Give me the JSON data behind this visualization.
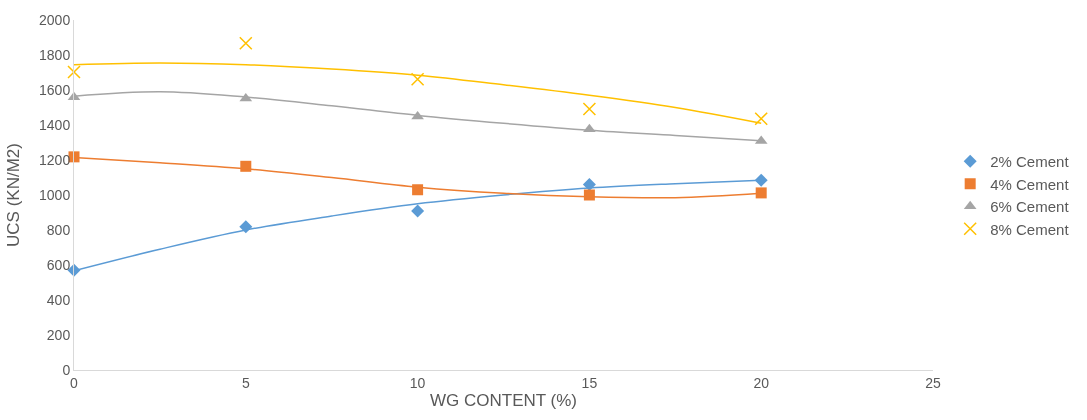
{
  "chart_data": {
    "type": "scatter",
    "xlabel": "WG CONTENT (%)",
    "ylabel": "UCS (KN/M2)",
    "x": [
      0,
      5,
      10,
      15,
      20
    ],
    "series": [
      {
        "name": "2% Cement",
        "color": "#5b9bd5",
        "marker": "diamond",
        "values": [
          570,
          818,
          909,
          1060,
          1085
        ]
      },
      {
        "name": "4% Cement",
        "color": "#ed7d31",
        "marker": "square",
        "values": [
          1218,
          1164,
          1030,
          1000,
          1012
        ]
      },
      {
        "name": "6% Cement",
        "color": "#a5a5a5",
        "marker": "triangle",
        "values": [
          1558,
          1552,
          1448,
          1376,
          1309
        ]
      },
      {
        "name": "8% Cement",
        "color": "#ffc000",
        "marker": "cross",
        "values": [
          1703,
          1867,
          1661,
          1491,
          1436
        ]
      },
      {
        "type": "line",
        "color": "#5b9bd5",
        "x": [
          0,
          2.5,
          5,
          7.5,
          10,
          12.5,
          15,
          17.5,
          20
        ],
        "values": [
          567,
          690,
          800,
          880,
          950,
          1000,
          1040,
          1065,
          1085
        ]
      },
      {
        "type": "line",
        "color": "#ed7d31",
        "x": [
          0,
          2.5,
          5,
          7.5,
          10,
          12.5,
          15,
          17.5,
          20
        ],
        "values": [
          1215,
          1185,
          1150,
          1100,
          1045,
          1010,
          990,
          985,
          1010
        ]
      },
      {
        "type": "line",
        "color": "#a5a5a5",
        "x": [
          0,
          2.5,
          5,
          7.5,
          10,
          12.5,
          15,
          17.5,
          20
        ],
        "values": [
          1565,
          1590,
          1560,
          1510,
          1455,
          1410,
          1370,
          1340,
          1310
        ]
      },
      {
        "type": "line",
        "color": "#ffc000",
        "x": [
          0,
          2.5,
          5,
          7.5,
          10,
          12.5,
          15,
          17.5,
          20
        ],
        "values": [
          1745,
          1755,
          1745,
          1720,
          1685,
          1630,
          1570,
          1500,
          1410
        ]
      }
    ],
    "xlim": [
      0,
      25
    ],
    "xticks": [
      0,
      5,
      10,
      15,
      20,
      25
    ],
    "ylim": [
      0,
      2000
    ],
    "yticks": [
      0,
      200,
      400,
      600,
      800,
      1000,
      1200,
      1400,
      1600,
      1800,
      2000
    ],
    "legend": "right"
  }
}
